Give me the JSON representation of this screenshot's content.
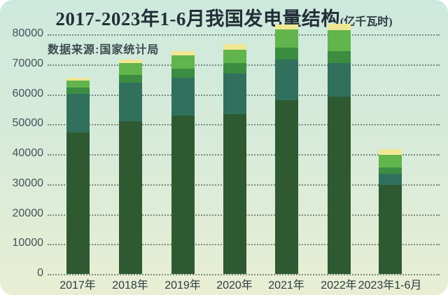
{
  "card": {
    "title": "2017-2023年1-6月我国发电量结构",
    "title_unit": "(亿千瓦时)",
    "source": "数据来源:国家统计局"
  },
  "colors": {
    "background_top": "#cde9dd",
    "background_bottom": "#e9eed3",
    "title_text": "#222e37",
    "axis_text": "#44525a",
    "gridline_dots": "#48584e"
  },
  "chart_data": {
    "type": "bar",
    "stacked": true,
    "title": "2017-2023年1-6月我国发电量结构(亿千瓦时)",
    "source_note": "数据来源:国家统计局",
    "legend": "none",
    "grid": "horizontal dotted",
    "xlabel": "",
    "ylabel": "",
    "ylim": [
      0,
      84000
    ],
    "y_ticks": [
      0,
      10000,
      20000,
      30000,
      40000,
      50000,
      60000,
      70000,
      80000
    ],
    "categories": [
      "2017年",
      "2018年",
      "2019年",
      "2020年",
      "2021年",
      "2022年",
      "2023年1-6月"
    ],
    "series": [
      {
        "name": "dark-green-bottom-segment",
        "color": "#2f5a31",
        "values": [
          47300,
          51000,
          52900,
          53350,
          58000,
          59200,
          29700
        ]
      },
      {
        "name": "teal-segment",
        "color": "#31705d",
        "values": [
          12900,
          12850,
          12650,
          13550,
          13550,
          11250,
          3750
        ]
      },
      {
        "name": "medium-green-segment",
        "color": "#3c8c41",
        "values": [
          2100,
          2600,
          3050,
          3500,
          4000,
          4000,
          2100
        ]
      },
      {
        "name": "bright-green-segment",
        "color": "#62b44c",
        "values": [
          2350,
          3950,
          4450,
          4450,
          6100,
          7000,
          4200
        ]
      },
      {
        "name": "pale-yellow-top-segment",
        "color": "#f0e793",
        "values": [
          950,
          1200,
          1400,
          1900,
          1650,
          2100,
          1900
        ]
      }
    ],
    "totals": [
      65600,
      71600,
      74450,
      76750,
      83300,
      83550,
      41650
    ]
  }
}
